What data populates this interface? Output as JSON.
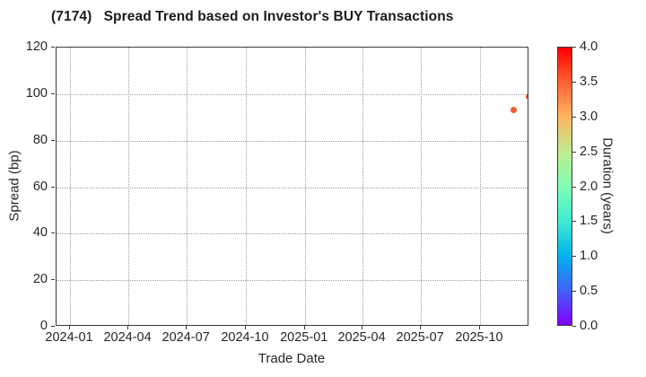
{
  "title": "(7174)   Spread Trend based on Investor's BUY Transactions",
  "chart_data": {
    "type": "scatter",
    "title": "(7174)   Spread Trend based on Investor's BUY Transactions",
    "xlabel": "Trade Date",
    "ylabel": "Spread (bp)",
    "grid": true,
    "grid_style": "dotted",
    "xlim": [
      "2023-12-11",
      "2025-12-17"
    ],
    "ylim": [
      0,
      120
    ],
    "x_ticks": [
      "2024-01",
      "2024-04",
      "2024-07",
      "2024-10",
      "2025-01",
      "2025-04",
      "2025-07",
      "2025-10"
    ],
    "y_ticks": [
      0,
      20,
      40,
      60,
      80,
      100,
      120
    ],
    "points": [
      {
        "date": "2025-11-23",
        "spread_bp": 93,
        "duration_years": 3.3,
        "color": "#f4572b"
      },
      {
        "date": "2025-12-16",
        "spread_bp": 99,
        "duration_years": 3.5,
        "color": "#f3512a"
      }
    ],
    "colorbar": {
      "label": "Duration (years)",
      "min": 0.0,
      "max": 4.0,
      "tick_step": 0.5,
      "tick_labels": [
        "0.0",
        "0.5",
        "1.0",
        "1.5",
        "2.0",
        "2.5",
        "3.0",
        "3.5",
        "4.0"
      ],
      "colormap": "rainbow",
      "gradient_stops": [
        "#8000ff",
        "#4062fa",
        "#00b4ec",
        "#40ecd4",
        "#80ffb4",
        "#bfec8e",
        "#ffb462",
        "#ff6232",
        "#ff0000"
      ]
    },
    "colors": {
      "background": "#ffffff",
      "grid": "#9e9e9e",
      "spine": "#3a3a3a",
      "text": "#262626"
    }
  }
}
